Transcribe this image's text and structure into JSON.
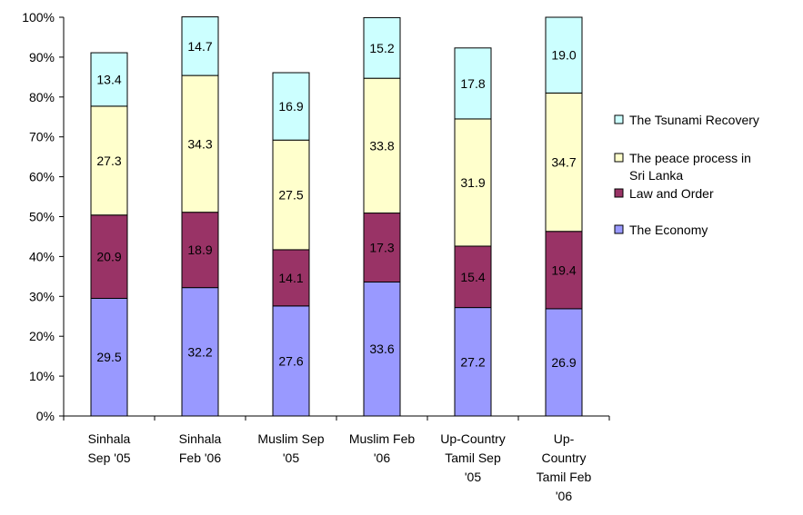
{
  "chart_data": {
    "type": "bar",
    "stacked": true,
    "percent": true,
    "categories": [
      [
        "Sinhala",
        "Sep '05"
      ],
      [
        "Sinhala",
        "Feb '06"
      ],
      [
        "Muslim Sep",
        "'05"
      ],
      [
        "Muslim Feb",
        "'06"
      ],
      [
        "Up-Country",
        "Tamil Sep",
        "'05"
      ],
      [
        "Up-",
        "Country",
        "Tamil Feb",
        "'06"
      ]
    ],
    "series": [
      {
        "name": "The Economy",
        "color": "#9999ff",
        "values": [
          29.5,
          32.2,
          27.6,
          33.6,
          27.2,
          26.9
        ]
      },
      {
        "name": "Law and Order",
        "color": "#993366",
        "values": [
          20.9,
          18.9,
          14.1,
          17.3,
          15.4,
          19.4
        ]
      },
      {
        "name": "The peace process in Sri Lanka",
        "color": "#ffffcc",
        "values": [
          27.3,
          34.3,
          27.5,
          33.8,
          31.9,
          34.7
        ]
      },
      {
        "name": "The Tsunami Recovery",
        "color": "#ccffff",
        "values": [
          13.4,
          14.7,
          16.9,
          15.2,
          17.8,
          19.0
        ]
      }
    ],
    "legend_order": [
      {
        "lines": [
          "The Tsunami Recovery"
        ],
        "series": 3
      },
      {
        "lines": [
          "The peace process in",
          "Sri Lanka"
        ],
        "series": 2
      },
      {
        "lines": [
          "Law and Order"
        ],
        "series": 1
      },
      {
        "lines": [
          "The Economy"
        ],
        "series": 0
      }
    ],
    "y_ticks": [
      "0%",
      "10%",
      "20%",
      "30%",
      "40%",
      "50%",
      "60%",
      "70%",
      "80%",
      "90%",
      "100%"
    ],
    "ylim": [
      0,
      100
    ],
    "legend_position": "right",
    "grid": false
  }
}
